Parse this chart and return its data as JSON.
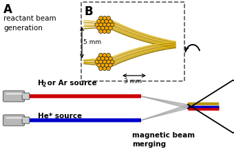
{
  "label_A": "A",
  "label_B": "B",
  "text_reactant": "reactant beam\ngeneration",
  "text_h2_main": "H",
  "text_h2_sub": "2",
  "text_h2_rest": " or Ar source",
  "text_he": "He* source",
  "text_magnetic": "magnetic beam\nmerging",
  "text_5mm": "5 mm",
  "text_3mm": "3 mm",
  "bg_color": "#ffffff",
  "red_color": "#cc0000",
  "blue_color": "#0000cc",
  "gold_color": "#b8960a",
  "fig_width": 3.4,
  "fig_height": 2.27,
  "dpi": 100
}
